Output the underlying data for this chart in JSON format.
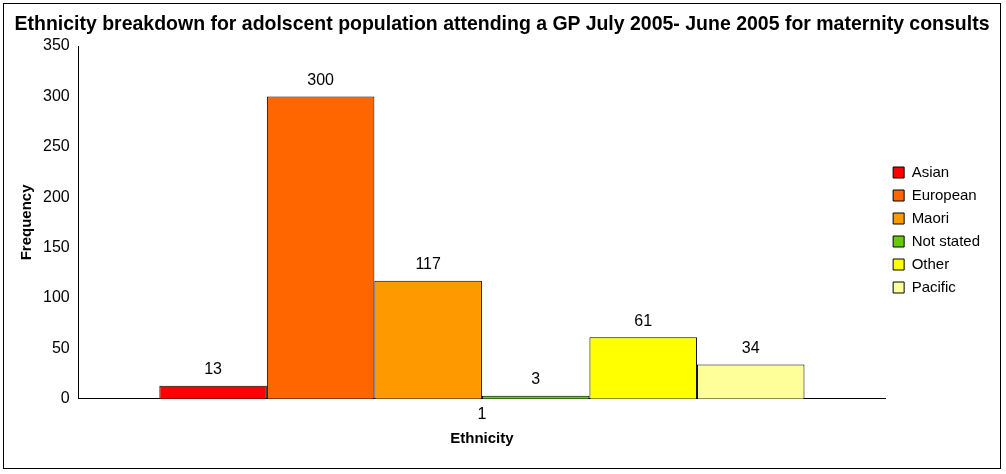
{
  "chart_data": {
    "type": "bar",
    "title": "Ethnicity breakdown for adolscent population attending a GP July 2005- June 2005 for maternity consults",
    "xlabel": "Ethnicity",
    "ylabel": "Frequency",
    "categories": [
      "1"
    ],
    "series": [
      {
        "name": "Asian",
        "color": "#ff0000",
        "values": [
          13
        ]
      },
      {
        "name": "European",
        "color": "#ff6600",
        "values": [
          300
        ]
      },
      {
        "name": "Maori",
        "color": "#ff9900",
        "values": [
          117
        ]
      },
      {
        "name": "Not stated",
        "color": "#66cc00",
        "values": [
          3
        ]
      },
      {
        "name": "Other",
        "color": "#ffff00",
        "values": [
          61
        ]
      },
      {
        "name": "Pacific",
        "color": "#ffff99",
        "values": [
          34
        ]
      }
    ],
    "ylim": [
      0,
      350
    ],
    "yticks": [
      0,
      50,
      100,
      150,
      200,
      250,
      300,
      350
    ],
    "grid": false,
    "legend": "right",
    "data_labels": true
  }
}
